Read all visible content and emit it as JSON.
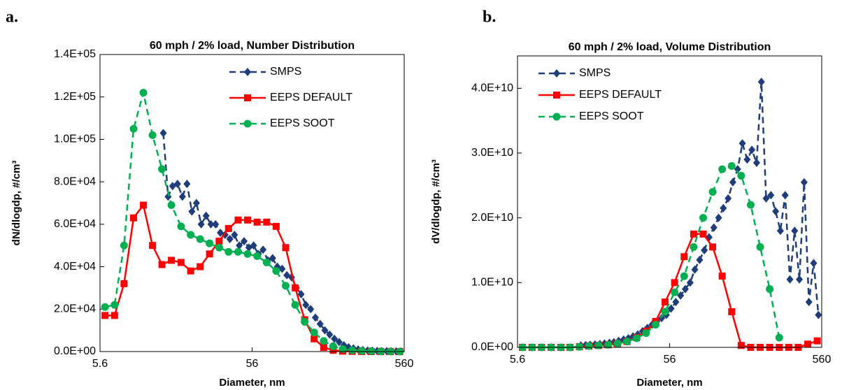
{
  "chart_data": [
    {
      "type": "line",
      "panel_label": "a.",
      "title": "60 mph / 2% load, Number Distribution",
      "x_label": "Diameter, nm",
      "y_label": "dN/dlogdp, #/cm³",
      "x_scale": "log",
      "legend": "upper right",
      "xlim": [
        5.6,
        560
      ],
      "xticks": [
        5.6,
        56,
        560
      ],
      "ylim": [
        0,
        140000
      ],
      "yticks": [
        {
          "value": 0,
          "label": "0.0E+00"
        },
        {
          "value": 20000,
          "label": "2.0E+04"
        },
        {
          "value": 40000,
          "label": "4.0E+04"
        },
        {
          "value": 60000,
          "label": "6.0E+04"
        },
        {
          "value": 80000,
          "label": "8.0E+04"
        },
        {
          "value": 100000,
          "label": "1.0E+05"
        },
        {
          "value": 120000,
          "label": "1.2E+05"
        },
        {
          "value": 140000,
          "label": "1.4E+05"
        }
      ],
      "series": [
        {
          "name": "SMPS",
          "color": "#1f3d7a",
          "style": "dashed",
          "marker": "diamond",
          "x": [
            14.6,
            15.7,
            16.8,
            18.1,
            19.5,
            20.9,
            22.5,
            24.1,
            25.9,
            27.9,
            30.0,
            32.2,
            34.6,
            37.2,
            40.0,
            42.9,
            46.1,
            49.6,
            53.3,
            57.3,
            61.5,
            66.1,
            71.0,
            76.4,
            82.0,
            88.2,
            94.7,
            101.8,
            109.4,
            117.6,
            126.3,
            135.8,
            145.9,
            156.8,
            168.5,
            181.1,
            194.6,
            209.1,
            224.7,
            241.4,
            259.5,
            278.8,
            299.6,
            322.0,
            346.0,
            371.8,
            399.5,
            429.4,
            461.4,
            495.8,
            532.8
          ],
          "values": [
            103000,
            73000,
            78000,
            79000,
            73000,
            79000,
            66000,
            70000,
            60000,
            64000,
            60000,
            60000,
            56000,
            55000,
            53000,
            55000,
            50000,
            52000,
            49000,
            50000,
            46000,
            48000,
            43000,
            44000,
            40000,
            39000,
            36000,
            35000,
            30000,
            27000,
            22000,
            20000,
            16000,
            13000,
            10000,
            8000,
            6000,
            4500,
            3000,
            2000,
            1500,
            1000,
            700,
            500,
            400,
            300,
            200,
            200,
            100,
            100,
            100
          ]
        },
        {
          "name": "EEPS DEFAULT",
          "color": "#ff0000",
          "style": "solid",
          "marker": "square",
          "x": [
            6.04,
            6.98,
            8.06,
            9.31,
            10.8,
            12.4,
            14.3,
            16.5,
            19.1,
            22.1,
            25.5,
            29.4,
            34.0,
            39.2,
            45.3,
            52.3,
            60.4,
            69.8,
            80.6,
            93.1,
            107.5,
            124.1,
            143.3,
            165.5,
            191.1,
            220.7,
            254.8,
            294.3,
            339.8,
            392.4,
            453.2,
            523.3
          ],
          "values": [
            17000,
            17000,
            32000,
            63000,
            69000,
            50000,
            41000,
            43000,
            42000,
            38000,
            40000,
            46000,
            52000,
            58000,
            62000,
            62000,
            61000,
            61000,
            59000,
            49000,
            30000,
            15000,
            6000,
            2000,
            600,
            200,
            100,
            0,
            0,
            0,
            0,
            0
          ]
        },
        {
          "name": "EEPS SOOT",
          "color": "#00b050",
          "style": "dashed",
          "marker": "circle",
          "x": [
            6.04,
            6.98,
            8.06,
            9.31,
            10.8,
            12.4,
            14.3,
            16.5,
            19.1,
            22.1,
            25.5,
            29.4,
            34.0,
            39.2,
            45.3,
            52.3,
            60.4,
            69.8,
            80.6,
            93.1,
            107.5,
            124.1,
            143.3,
            165.5,
            191.1,
            220.7,
            254.8,
            294.3,
            339.8,
            392.4,
            453.2,
            523.3
          ],
          "values": [
            21000,
            22000,
            50000,
            105000,
            122000,
            102000,
            86000,
            69000,
            59000,
            55000,
            53000,
            51000,
            49000,
            47000,
            47000,
            46000,
            45000,
            42000,
            38000,
            31000,
            22000,
            14000,
            9000,
            5000,
            2500,
            1200,
            600,
            300,
            200,
            100,
            50,
            0
          ]
        }
      ]
    },
    {
      "type": "line",
      "panel_label": "b.",
      "title": "60 mph / 2% load, Volume Distribution",
      "x_label": "Diameter, nm",
      "y_label": "dV/dlogdp, #/cm³",
      "x_scale": "log",
      "legend": "upper left",
      "xlim": [
        5.6,
        560
      ],
      "xticks": [
        5.6,
        56,
        560
      ],
      "ylim": [
        0,
        45000000000
      ],
      "yticks": [
        {
          "value": 0,
          "label": "0.0E+00"
        },
        {
          "value": 10000000000,
          "label": "1.0E+10"
        },
        {
          "value": 20000000000,
          "label": "2.0E+10"
        },
        {
          "value": 30000000000,
          "label": "3.0E+10"
        },
        {
          "value": 40000000000,
          "label": "4.0E+10"
        }
      ],
      "series": [
        {
          "name": "SMPS",
          "color": "#1f3d7a",
          "style": "dashed",
          "marker": "diamond",
          "x": [
            14.6,
            15.7,
            16.8,
            18.1,
            19.5,
            20.9,
            22.5,
            24.1,
            25.9,
            27.9,
            30.0,
            32.2,
            34.6,
            37.2,
            40.0,
            42.9,
            46.1,
            49.6,
            53.3,
            57.3,
            61.5,
            66.1,
            71.0,
            76.4,
            82.0,
            88.2,
            94.7,
            101.8,
            109.4,
            117.6,
            126.3,
            135.8,
            145.9,
            156.8,
            168.5,
            181.1,
            194.6,
            209.1,
            224.7,
            241.4,
            259.5,
            278.8,
            299.6,
            322.0,
            346.0,
            371.8,
            399.5,
            429.4,
            461.4,
            495.8,
            532.8
          ],
          "values": [
            300000000,
            350000000,
            400000000,
            450000000,
            500000000,
            600000000,
            700000000,
            800000000,
            1000000000,
            1200000000,
            1400000000,
            1700000000,
            2000000000,
            2500000000,
            3000000000,
            3500000000,
            4000000000,
            4500000000,
            5000000000,
            6000000000,
            7000000000,
            8000000000,
            9000000000,
            10000000000,
            12000000000,
            13500000000,
            15000000000,
            17000000000,
            18500000000,
            20000000000,
            21500000000,
            23000000000,
            25500000000,
            27500000000,
            31500000000,
            29000000000,
            30500000000,
            28500000000,
            41000000000,
            23000000000,
            23500000000,
            21000000000,
            18000000000,
            23500000000,
            10500000000,
            18000000000,
            10500000000,
            25500000000,
            7000000000,
            13000000000,
            5000000000
          ]
        },
        {
          "name": "EEPS DEFAULT",
          "color": "#ff0000",
          "style": "solid",
          "marker": "square",
          "x": [
            6.04,
            6.98,
            8.06,
            9.31,
            10.8,
            12.4,
            14.3,
            16.5,
            19.1,
            22.1,
            25.5,
            29.4,
            34.0,
            39.2,
            45.3,
            52.3,
            60.4,
            69.8,
            80.6,
            93.1,
            107.5,
            124.1,
            143.3,
            165.5,
            191.1,
            220.7,
            254.8,
            294.3,
            339.8,
            392.4,
            453.2,
            523.3
          ],
          "values": [
            0,
            0,
            0,
            0,
            0,
            0,
            100000000,
            200000000,
            300000000,
            400000000,
            600000000,
            900000000,
            1500000000,
            2500000000,
            4000000000,
            7000000000,
            10000000000,
            14000000000,
            17500000000,
            17500000000,
            15500000000,
            11000000000,
            5500000000,
            300000000,
            0,
            0,
            0,
            0,
            0,
            0,
            500000000,
            1000000000
          ]
        },
        {
          "name": "EEPS SOOT",
          "color": "#00b050",
          "style": "dashed",
          "marker": "circle",
          "x": [
            6.04,
            6.98,
            8.06,
            9.31,
            10.8,
            12.4,
            14.3,
            16.5,
            19.1,
            22.1,
            25.5,
            29.4,
            34.0,
            39.2,
            45.3,
            52.3,
            60.4,
            69.8,
            80.6,
            93.1,
            107.5,
            124.1,
            143.3,
            165.5,
            191.1,
            220.7,
            254.8,
            294.3
          ],
          "values": [
            0,
            0,
            0,
            0,
            0,
            0,
            100000000,
            200000000,
            300000000,
            400000000,
            600000000,
            900000000,
            1400000000,
            2200000000,
            3500000000,
            5500000000,
            8500000000,
            11000000000,
            15500000000,
            20000000000,
            24000000000,
            27500000000,
            28000000000,
            26500000000,
            22000000000,
            15500000000,
            9000000000,
            1500000000
          ]
        }
      ]
    }
  ]
}
